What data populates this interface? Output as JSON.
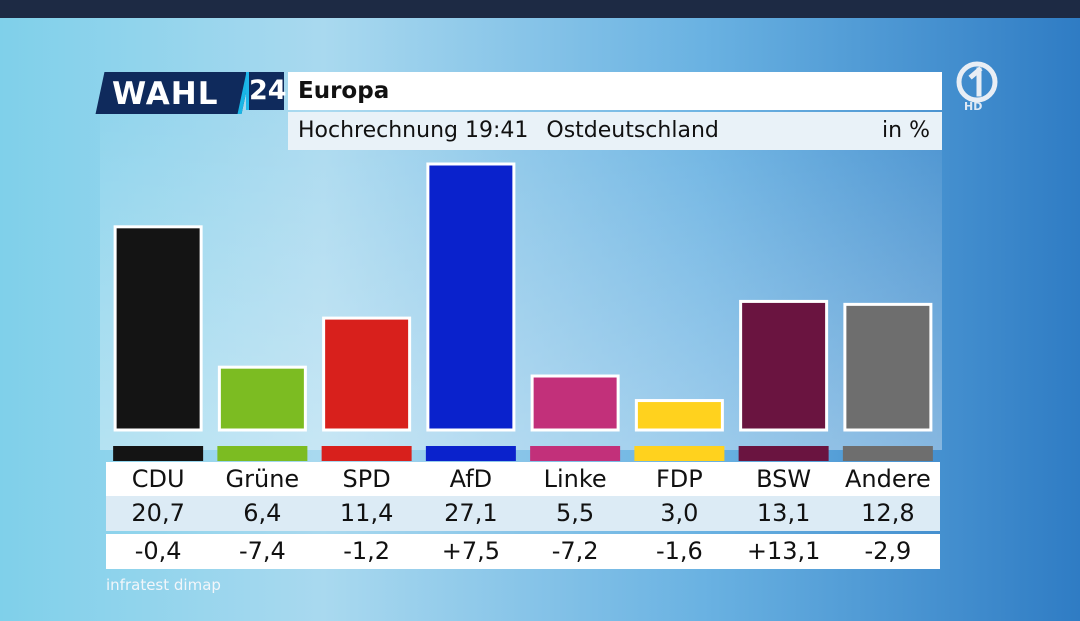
{
  "header": {
    "logo_text": "WAHL",
    "logo_number": "24",
    "title": "Europa",
    "subtitle_time": "Hochrechnung 19:41",
    "subtitle_region": "Ostdeutschland",
    "unit": "in %"
  },
  "channel": {
    "logo": "ard-one-icon",
    "hd_label": "HD"
  },
  "source": "infratest dimap",
  "chart_data": {
    "type": "bar",
    "title": "Europa",
    "categories": [
      "CDU",
      "Grüne",
      "SPD",
      "AfD",
      "Linke",
      "FDP",
      "BSW",
      "Andere"
    ],
    "values": [
      20.7,
      6.4,
      11.4,
      27.1,
      5.5,
      3.0,
      13.1,
      12.8
    ],
    "value_labels": [
      "20,7",
      "6,4",
      "11,4",
      "27,1",
      "5,5",
      "3,0",
      "13,1",
      "12,8"
    ],
    "diff_labels": [
      "-0,4",
      "-7,4",
      "-1,2",
      "+7,5",
      "-7,2",
      "-1,6",
      "+13,1",
      "-2,9"
    ],
    "diffs": [
      -0.4,
      -7.4,
      -1.2,
      7.5,
      -7.2,
      -1.6,
      13.1,
      -2.9
    ],
    "colors": [
      "#141414",
      "#7cbc22",
      "#d8201c",
      "#0a22cc",
      "#c2307a",
      "#ffd21e",
      "#6a1440",
      "#6e6e6e"
    ],
    "ylim": [
      0,
      27.1
    ],
    "grid": false,
    "legend": "none"
  }
}
